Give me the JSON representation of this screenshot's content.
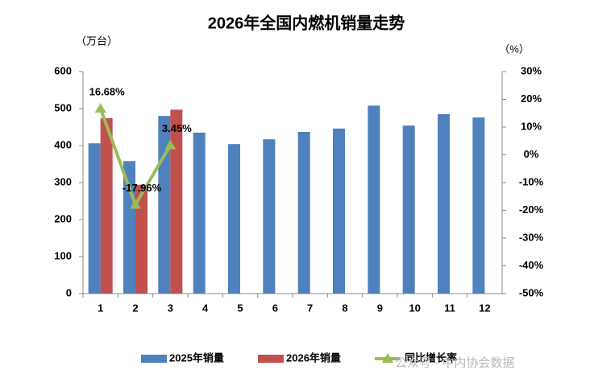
{
  "chart_data": {
    "type": "bar",
    "title": "2026年全国内燃机销量走势",
    "y_label": "（万台）",
    "y2_label": "（%）",
    "categories": [
      "1",
      "2",
      "3",
      "4",
      "5",
      "6",
      "7",
      "8",
      "9",
      "10",
      "11",
      "12"
    ],
    "series": [
      {
        "name": "2025年销量",
        "color": "#4f81bd",
        "values": [
          406,
          358,
          480,
          435,
          404,
          417,
          437,
          446,
          508,
          454,
          485,
          476
        ]
      },
      {
        "name": "2026年销量",
        "color": "#c0504d",
        "values": [
          474,
          294,
          497,
          null,
          null,
          null,
          null,
          null,
          null,
          null,
          null,
          null
        ]
      },
      {
        "name": "同比增长率",
        "color": "#9bbb59",
        "type": "line",
        "axis": "y2",
        "values": [
          16.68,
          -17.96,
          3.45,
          null,
          null,
          null,
          null,
          null,
          null,
          null,
          null,
          null
        ],
        "value_labels": [
          "16.68%",
          "-17.96%",
          "3.45%",
          null,
          null,
          null,
          null,
          null,
          null,
          null,
          null,
          null
        ]
      }
    ],
    "ylim": [
      0,
      600
    ],
    "yticks": [
      0,
      100,
      200,
      300,
      400,
      500,
      600
    ],
    "y2lim": [
      -50,
      30
    ],
    "y2ticks": [
      {
        "value": -50,
        "label": "-50%"
      },
      {
        "value": -40,
        "label": "-40%"
      },
      {
        "value": -30,
        "label": "-30%"
      },
      {
        "value": -20,
        "label": "-20%"
      },
      {
        "value": -10,
        "label": "-10%"
      },
      {
        "value": 0,
        "label": "0%"
      },
      {
        "value": 10,
        "label": "10%"
      },
      {
        "value": 20,
        "label": "20%"
      },
      {
        "value": 30,
        "label": "30%"
      }
    ],
    "legend": "bottom",
    "watermark": "公众号 · 中内协会数据"
  }
}
